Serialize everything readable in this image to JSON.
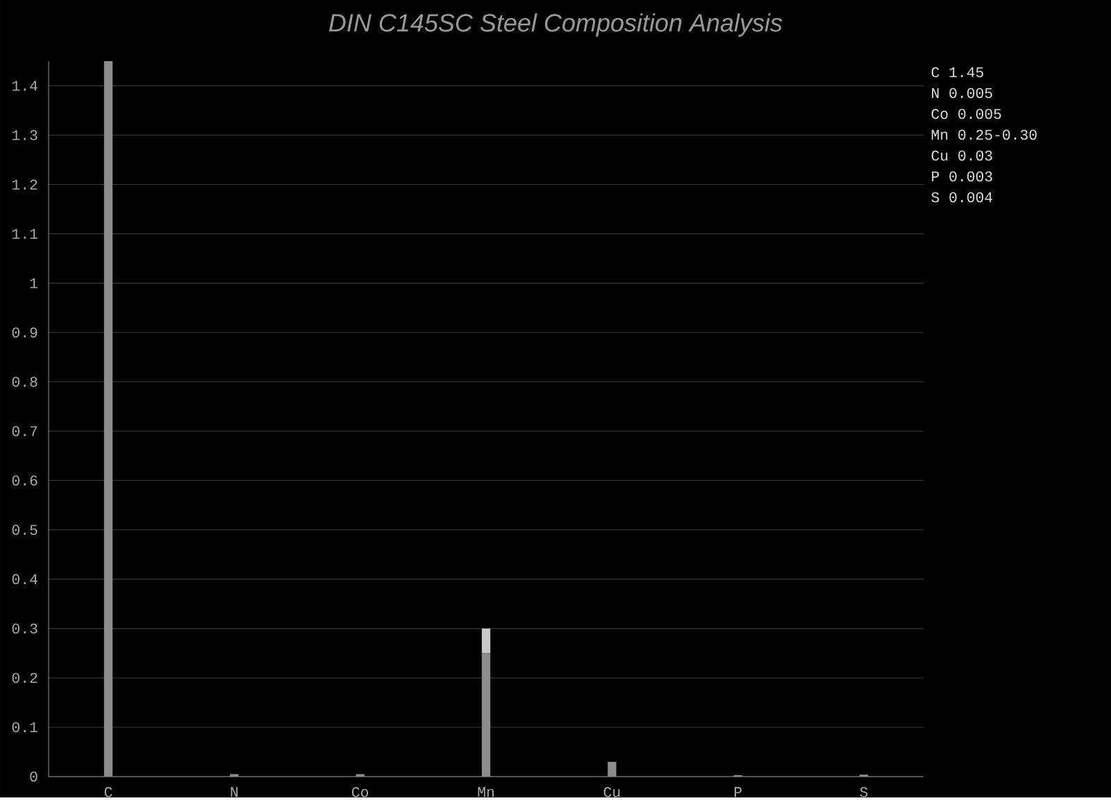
{
  "chart_data": {
    "type": "bar",
    "title": "DIN C145SC Steel Composition Analysis",
    "categories": [
      "C",
      "N",
      "Co",
      "Mn",
      "Cu",
      "P",
      "S"
    ],
    "stacked": true,
    "series": [
      {
        "color": "#8c8c8c",
        "values": [
          1.45,
          0.005,
          0.005,
          0.25,
          0.03,
          0.003,
          0.004
        ]
      },
      {
        "color": "#c8c8c8",
        "values": [
          null,
          null,
          null,
          0.05,
          null,
          null,
          null
        ]
      }
    ],
    "ylim": [
      0,
      1.45
    ],
    "yticks": [
      0,
      0.1,
      0.2,
      0.3,
      0.4,
      0.5,
      0.6,
      0.7,
      0.8,
      0.9,
      1,
      1.1,
      1.2,
      1.3,
      1.4
    ],
    "grid": "y",
    "annotations": [
      "C  1.45",
      "N  0.005",
      "Co 0.005",
      "Mn 0.25-0.30",
      "Cu 0.03",
      "P  0.003",
      "S  0.004"
    ]
  }
}
